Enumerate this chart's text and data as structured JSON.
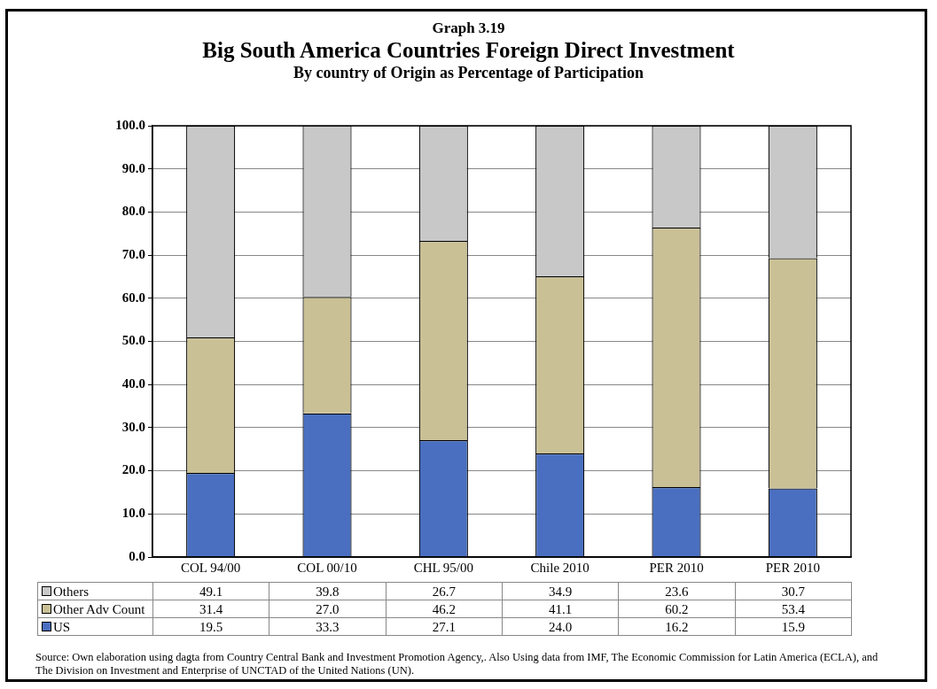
{
  "chart_data": {
    "type": "bar",
    "title": "Big South America Countries Foreign Direct Investment",
    "subtitle": "By country of Origin  as Percentage of  Participation",
    "categories": [
      "COL 94/00",
      "COL 00/10",
      "CHL 95/00",
      "Chile 2010",
      "PER 2010",
      "PER 2010"
    ],
    "series": [
      {
        "name": "US",
        "color": "#4a6fc0",
        "values": [
          19.5,
          33.3,
          27.1,
          24.0,
          16.2,
          15.9
        ],
        "value_labels": [
          "19.5",
          "33.3",
          "27.1",
          "24.0",
          "16.2",
          "15.9"
        ]
      },
      {
        "name": "Other Adv Count",
        "color": "#c9c096",
        "values": [
          31.4,
          27.0,
          46.2,
          41.1,
          60.2,
          53.4
        ],
        "value_labels": [
          "31.4",
          "27.0",
          "46.2",
          "41.1",
          "60.2",
          "53.4"
        ]
      },
      {
        "name": "Others",
        "color": "#c8c8c8",
        "values": [
          49.1,
          39.8,
          26.7,
          34.9,
          23.6,
          30.7
        ],
        "value_labels": [
          "49.1",
          "39.8",
          "26.7",
          "34.9",
          "23.6",
          "30.7"
        ]
      }
    ],
    "stacked": true,
    "ylim": [
      0,
      100
    ],
    "yticks": [
      {
        "value": 0,
        "label": "0.0"
      },
      {
        "value": 10,
        "label": "10.0"
      },
      {
        "value": 20,
        "label": "20.0"
      },
      {
        "value": 30,
        "label": "30.0"
      },
      {
        "value": 40,
        "label": "40.0"
      },
      {
        "value": 50,
        "label": "50.0"
      },
      {
        "value": 60,
        "label": "60.0"
      },
      {
        "value": 70,
        "label": "70.0"
      },
      {
        "value": 80,
        "label": "80.0"
      },
      {
        "value": 90,
        "label": "90.0"
      },
      {
        "value": 100,
        "label": "100.0"
      }
    ],
    "grid": "y",
    "legend": "bottom",
    "annotations": [
      "Graph 3.19",
      "Source: Own elaboration  using dagta from Country  Central  Bank and Investment  Promotion Agency,. Also Using data from  IMF, The Economic Commission for Latin America (ECLA), and The Division on Investment and Enterprise of UNCTAD of the United Nations (UN)."
    ]
  }
}
